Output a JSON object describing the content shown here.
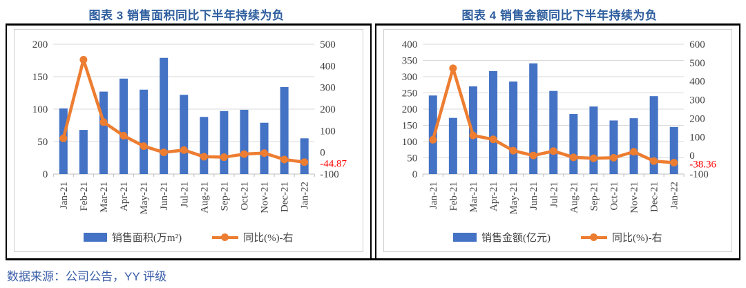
{
  "page": {
    "footer": "数据来源：公司公告，YY 评级"
  },
  "colors": {
    "bar_blue": "#4472C4",
    "line_orange": "#ED7D31",
    "title_blue": "#2E5E9E",
    "footer_blue": "#3A5DA8",
    "label_red": "#FF0000",
    "gridline": "#D9D9D9",
    "axis_line": "#BFBFBF",
    "axis_text": "#404040"
  },
  "chart_data": [
    {
      "type": "bar+line",
      "title": "图表 3 销售面积同比下半年持续为负",
      "categories": [
        "Jan-21",
        "Feb-21",
        "Mar-21",
        "Apr-21",
        "May-21",
        "Jun-21",
        "Jul-21",
        "Aug-21",
        "Sep-21",
        "Oct-21",
        "Nov-21",
        "Dec-21",
        "Jan-22"
      ],
      "series": [
        {
          "name": "销售面积(万m²)",
          "type": "bar",
          "axis": "left",
          "color": "#4472C4",
          "values": [
            101,
            68,
            127,
            147,
            130,
            179,
            122,
            88,
            97,
            99,
            79,
            134,
            55
          ]
        },
        {
          "name": "同比(%)-右",
          "type": "line",
          "axis": "right",
          "color": "#ED7D31",
          "values": [
            65,
            428,
            140,
            77,
            29,
            0,
            11,
            -20,
            -22,
            -8,
            -3,
            -33,
            -44.87
          ]
        }
      ],
      "left_axis": {
        "min": 0,
        "max": 200,
        "step": 50
      },
      "right_axis": {
        "min": -100,
        "max": 500,
        "step": 100
      },
      "last_point_label": {
        "text": "-44.87",
        "color": "#FF0000"
      },
      "grid": true,
      "legend_position": "bottom"
    },
    {
      "type": "bar+line",
      "title": "图表 4 销售金额同比下半年持续为负",
      "categories": [
        "Jan-21",
        "Feb-21",
        "Mar-21",
        "Apr-21",
        "May-21",
        "Jun-21",
        "Jul-21",
        "Aug-21",
        "Sep-21",
        "Oct-21",
        "Nov-21",
        "Dec-21",
        "Jan-22"
      ],
      "series": [
        {
          "name": "销售金额(亿元)",
          "type": "bar",
          "axis": "left",
          "color": "#4472C4",
          "values": [
            242,
            173,
            270,
            317,
            285,
            341,
            256,
            185,
            208,
            165,
            172,
            240,
            145
          ]
        },
        {
          "name": "同比(%)-右",
          "type": "line",
          "axis": "right",
          "color": "#ED7D31",
          "values": [
            85,
            470,
            108,
            87,
            26,
            0,
            24,
            -10,
            -15,
            -12,
            20,
            -30,
            -38.36
          ]
        }
      ],
      "left_axis": {
        "min": 0,
        "max": 400,
        "step": 50
      },
      "right_axis": {
        "min": -100,
        "max": 600,
        "step": 100
      },
      "last_point_label": {
        "text": "-38.36",
        "color": "#FF0000"
      },
      "grid": true,
      "legend_position": "bottom"
    }
  ]
}
